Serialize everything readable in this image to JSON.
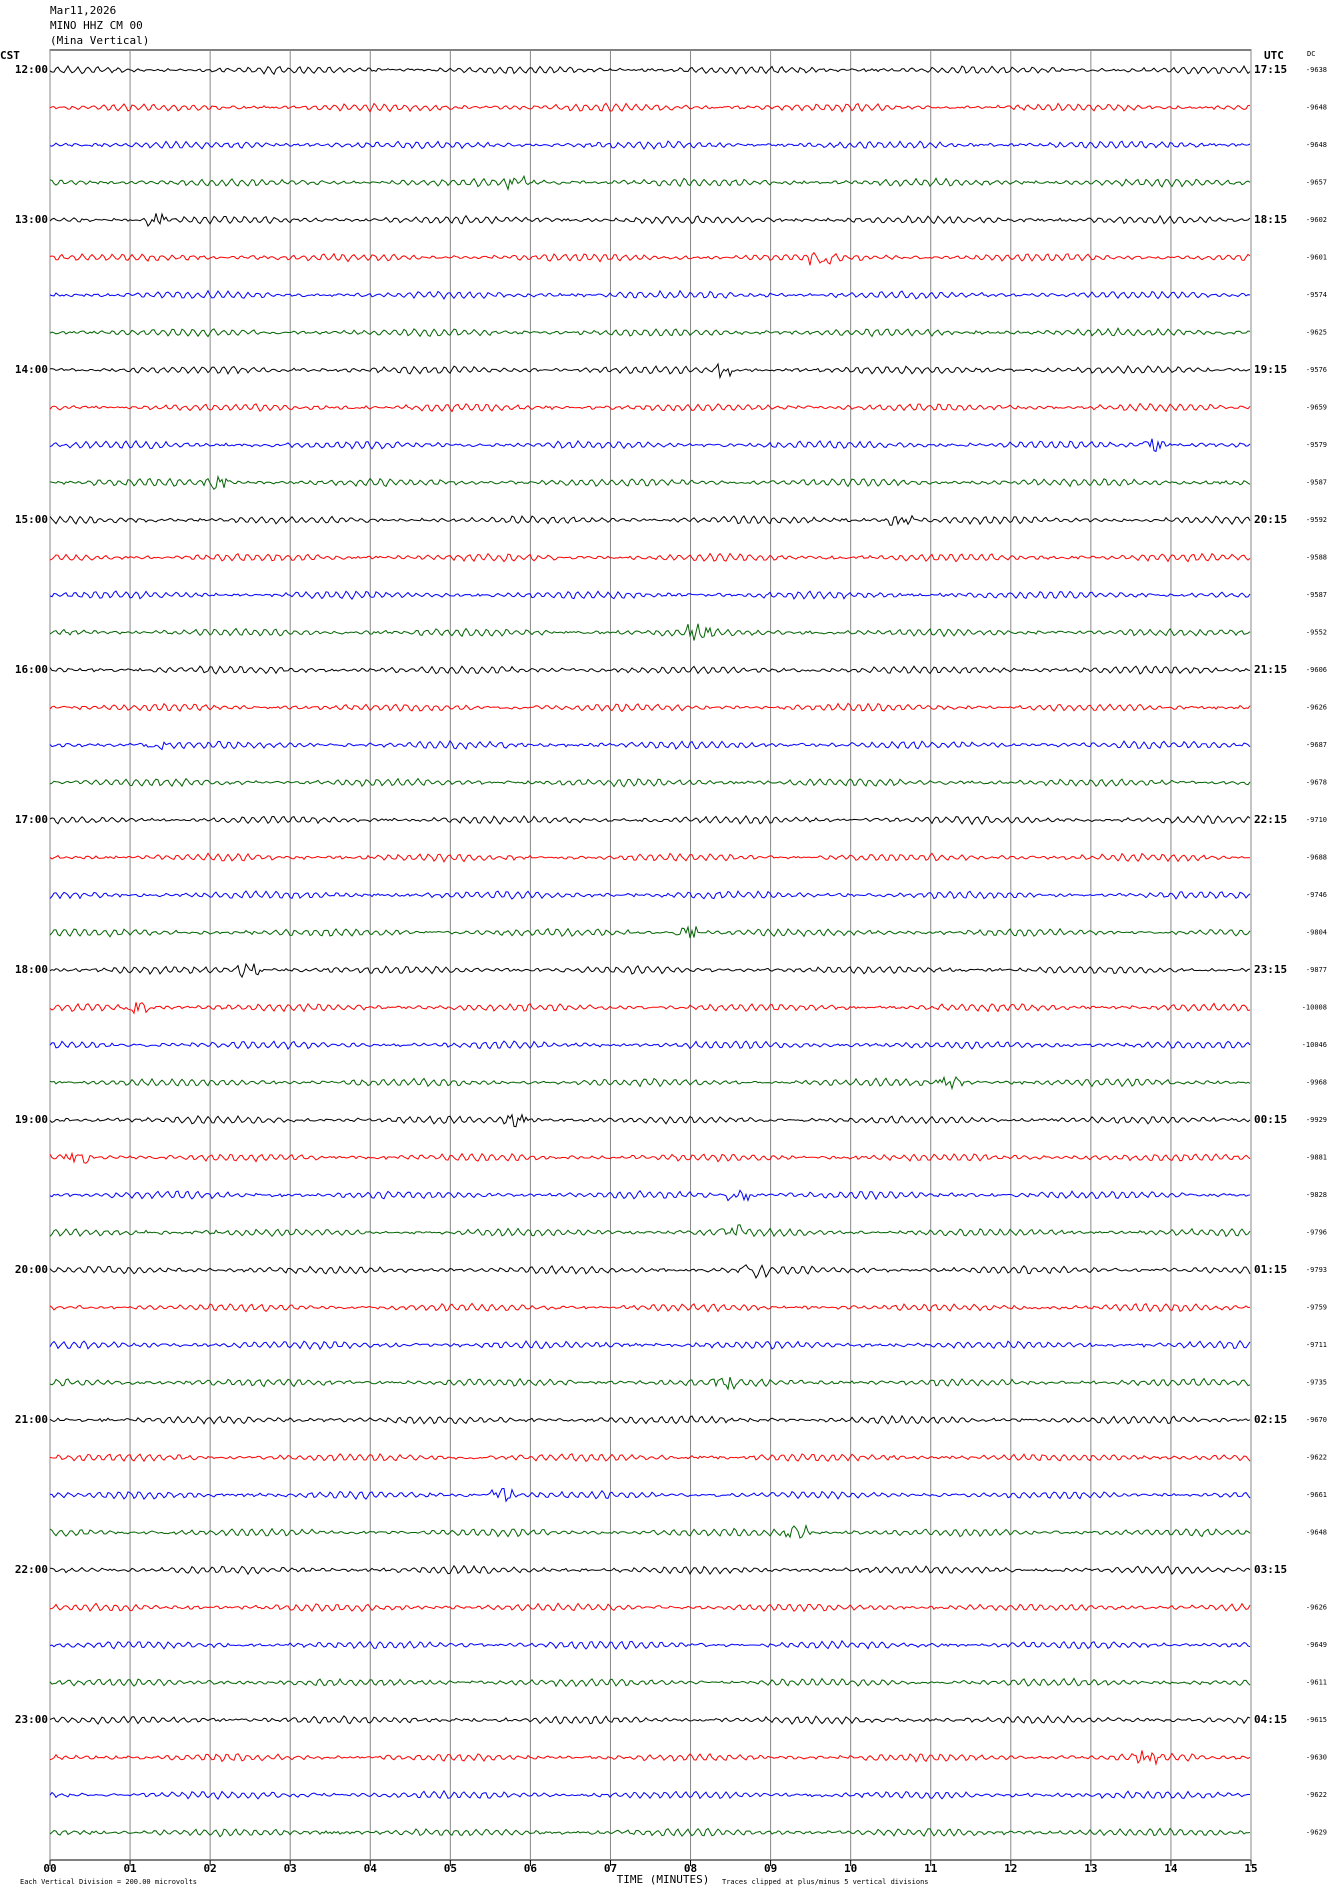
{
  "header": {
    "date": "Mar11,2026",
    "station": "MINO HHZ CM 00",
    "location": "(Mina Vertical)"
  },
  "left_label": "CST",
  "right_label": "UTC",
  "dc_label": "DC",
  "hours": [
    {
      "cst": "12:00",
      "utc": "17:15"
    },
    {
      "cst": "13:00",
      "utc": "18:15"
    },
    {
      "cst": "14:00",
      "utc": "19:15"
    },
    {
      "cst": "15:00",
      "utc": "20:15"
    },
    {
      "cst": "16:00",
      "utc": "21:15"
    },
    {
      "cst": "17:00",
      "utc": "22:15"
    },
    {
      "cst": "18:00",
      "utc": "23:15"
    },
    {
      "cst": "19:00",
      "utc": "00:15"
    },
    {
      "cst": "20:00",
      "utc": "01:15"
    },
    {
      "cst": "21:00",
      "utc": "02:15"
    },
    {
      "cst": "22:00",
      "utc": "03:15"
    },
    {
      "cst": "23:00",
      "utc": "04:15"
    }
  ],
  "dc_values": [
    "-9638",
    "-9648",
    "-9648",
    "-9657",
    "-9602",
    "-9601",
    "-9574",
    "-9625",
    "-9576",
    "-9659",
    "-9579",
    "-9587",
    "-9592",
    "-9588",
    "-9587",
    "-9552",
    "-9606",
    "-9626",
    "-9687",
    "-9678",
    "-9710",
    "-9688",
    "-9746",
    "-9804",
    "-9877",
    "-10008",
    "-10046",
    "-9968",
    "-9929",
    "-9881",
    "-9828",
    "-9796",
    "-9793",
    "-9759",
    "-9711",
    "-9735",
    "-9670",
    "-9622",
    "-9661",
    "-9648",
    null,
    "-9626",
    "-9649",
    "-9611",
    "-9615",
    "-9630",
    "-9622",
    "-9629"
  ],
  "x_ticks": [
    "00",
    "01",
    "02",
    "03",
    "04",
    "05",
    "06",
    "07",
    "08",
    "09",
    "10",
    "11",
    "12",
    "13",
    "14",
    "15"
  ],
  "x_axis_label": "TIME (MINUTES)",
  "scale_note": "Each Vertical Division = 200.00 microvolts",
  "clip_note": "Traces clipped at plus/minus 5 vertical divisions",
  "trace_colors": [
    "#000000",
    "#ff0000",
    "#0000ff",
    "#006400"
  ]
}
